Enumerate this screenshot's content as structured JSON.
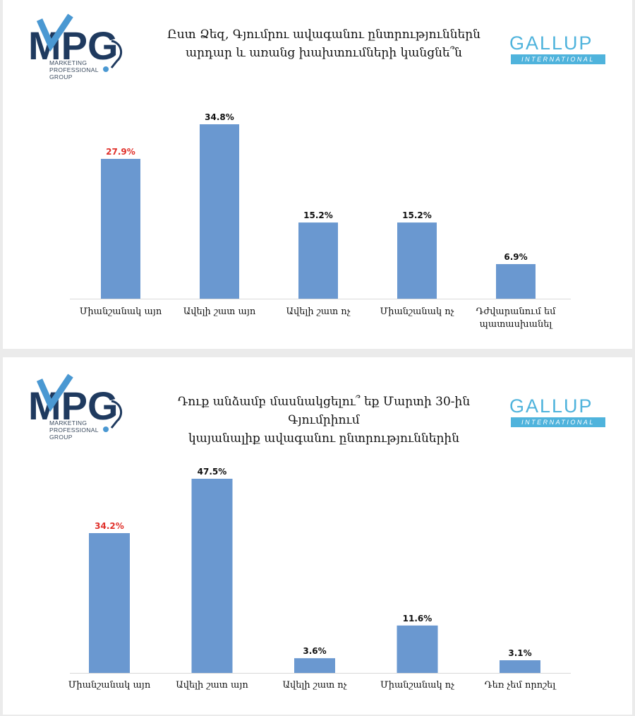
{
  "colors": {
    "bar": "#6a98d0",
    "highlight_label": "#e0312b",
    "label": "#111111",
    "axis": "#d9d9d9",
    "mpg_navy": "#1f3a5f",
    "mpg_blue": "#4a98d2",
    "gallup": "#4fb3dc"
  },
  "branding": {
    "mpg_letters": "MPG",
    "mpg_subtitle": "MARKETING\nPROFESSIONAL\nGROUP",
    "gallup_name": "GALLUP",
    "gallup_sub": "INTERNATIONAL"
  },
  "panels": [
    {
      "title": "Ըստ Ձեզ, Գյումրու ավագանու ընտրություններն\nարդար և առանց խախտումների կանցնե՞ն"
    },
    {
      "title": "Դուք անձամբ մասնակցելու՞ եք Մարտի 30-ին Գյումրիում\nկայանալիք ավագանու ընտրություններին"
    }
  ],
  "chart_data": [
    {
      "type": "bar",
      "title": "Ըստ Ձեզ, Գյումրու ավագանու ընտրություններն արդար և առանց խախտումների կանցնե՞ն",
      "categories": [
        "Միանշանակ այո",
        "Ավելի շատ այո",
        "Ավելի շատ ոչ",
        "Միանշանակ ոչ",
        "Դժվարանում եմ պատասխանել"
      ],
      "values": [
        27.9,
        34.8,
        15.2,
        15.2,
        6.9
      ],
      "labels": [
        "27.9%",
        "34.8%",
        "15.2%",
        "15.2%",
        "6.9%"
      ],
      "highlight_index": 0,
      "xlabel": "",
      "ylabel": "",
      "grid": false,
      "legend": "none"
    },
    {
      "type": "bar",
      "title": "Դուք անձամբ մասնակցելու՞ եք Մարտի 30-ին Գյումրիում կայանալիք ավագանու ընտրություններին",
      "categories": [
        "Միանշանակ այո",
        "Ավելի շատ այո",
        "Ավելի շատ ոչ",
        "Միանշանակ ոչ",
        "Դեռ չեմ որոշել"
      ],
      "values": [
        34.2,
        47.5,
        3.6,
        11.6,
        3.1
      ],
      "labels": [
        "34.2%",
        "47.5%",
        "3.6%",
        "11.6%",
        "3.1%"
      ],
      "highlight_index": 0,
      "xlabel": "",
      "ylabel": "",
      "grid": false,
      "legend": "none"
    }
  ]
}
